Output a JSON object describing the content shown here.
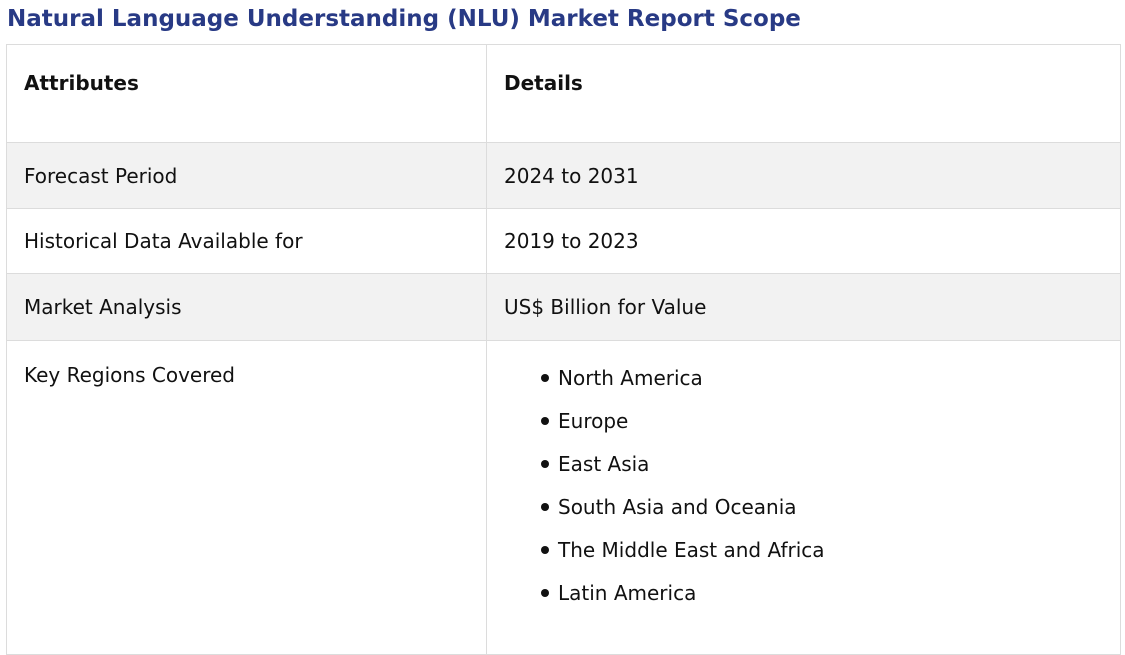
{
  "title": "Natural Language Understanding (NLU) Market Report Scope",
  "table": {
    "headers": {
      "attributes": "Attributes",
      "details": "Details"
    },
    "rows": [
      {
        "attribute": "Forecast Period",
        "detail": "2024 to 2031"
      },
      {
        "attribute": "Historical Data Available for",
        "detail": "2019 to 2023"
      },
      {
        "attribute": "Market Analysis",
        "detail": "US$ Billion for Value"
      }
    ],
    "regions": {
      "attribute": "Key Regions Covered",
      "items": [
        "North America",
        "Europe",
        "East Asia",
        "South Asia and Oceania",
        "The Middle East and Africa",
        "Latin America"
      ]
    }
  }
}
